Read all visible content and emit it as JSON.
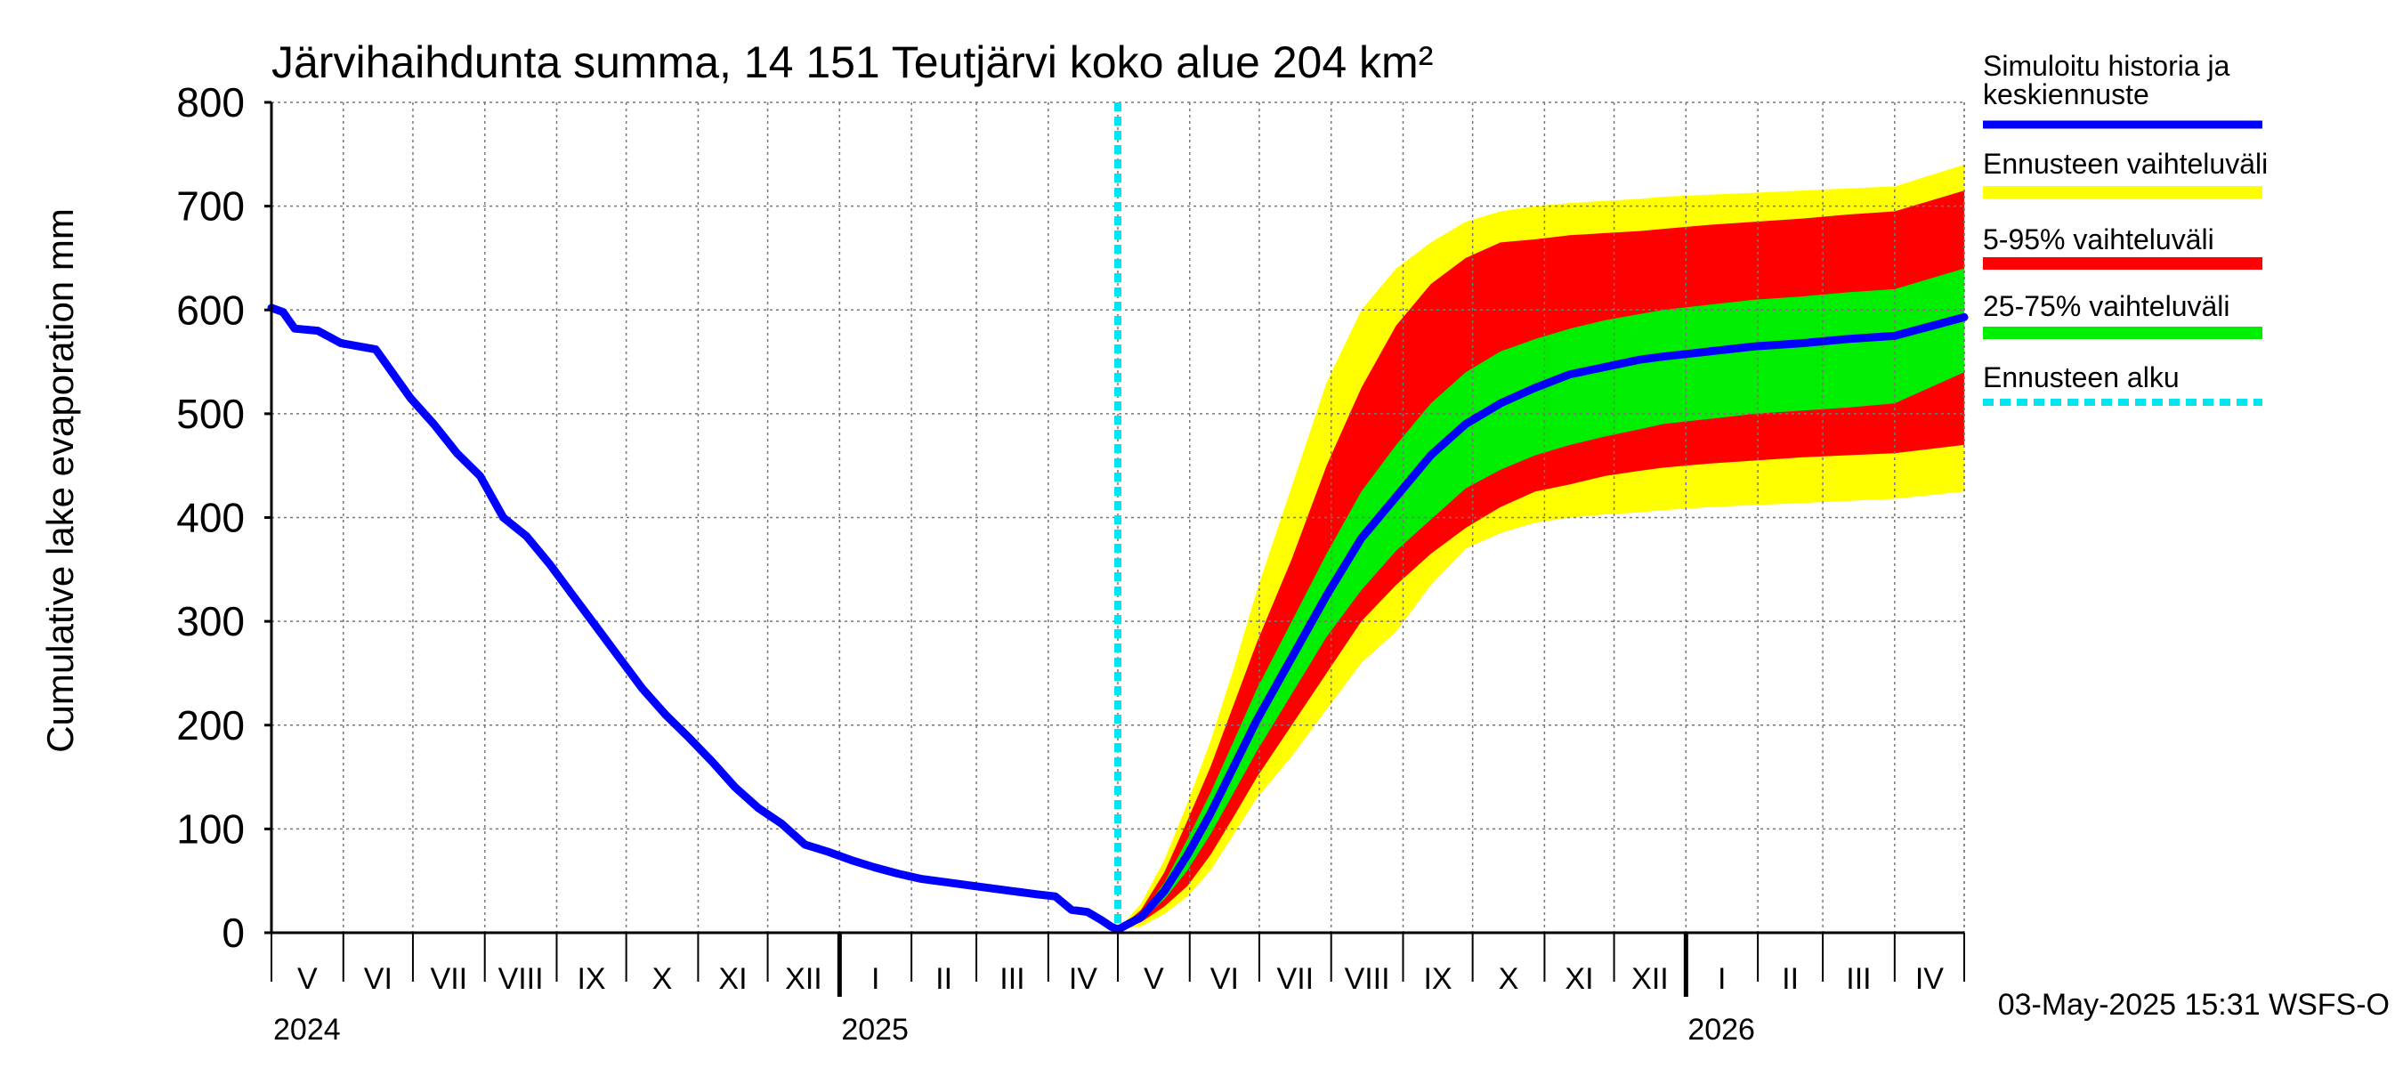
{
  "chart_data": {
    "type": "area",
    "title": "Järvihaihdunta summa, 14 151 Teutjärvi koko alue 204 km²",
    "ylabel": "Cumulative lake evaporation   mm",
    "xlabel": "",
    "ylim": [
      0,
      800
    ],
    "yticks": [
      "0",
      "100",
      "200",
      "300",
      "400",
      "500",
      "600",
      "700",
      "800"
    ],
    "grid": true,
    "legend_position": "right",
    "months": [
      "V",
      "VI",
      "VII",
      "VIII",
      "IX",
      "X",
      "XI",
      "XII",
      "I",
      "II",
      "III",
      "IV",
      "V",
      "VI",
      "VII",
      "VIII",
      "IX",
      "X",
      "XI",
      "XII",
      "I",
      "II",
      "III",
      "IV"
    ],
    "years": [
      "2024",
      "2025",
      "2026"
    ],
    "forecast_start_day": 365,
    "history": {
      "name": "Simuloitu historia ja keskiennuste",
      "days": [
        0,
        5,
        10,
        20,
        30,
        45,
        52,
        60,
        70,
        80,
        90,
        100,
        110,
        120,
        130,
        140,
        150,
        160,
        170,
        180,
        190,
        200,
        210,
        220,
        230,
        240,
        250,
        260,
        270,
        280,
        290,
        300,
        310,
        320,
        330,
        338,
        345,
        352,
        358,
        362,
        365
      ],
      "values": [
        602,
        598,
        582,
        580,
        568,
        562,
        540,
        515,
        490,
        462,
        440,
        400,
        382,
        355,
        325,
        295,
        265,
        235,
        210,
        188,
        165,
        140,
        120,
        105,
        85,
        78,
        70,
        63,
        57,
        52,
        49,
        46,
        43,
        40,
        37,
        35,
        22,
        20,
        12,
        6,
        3
      ]
    },
    "forecast": {
      "days": [
        365,
        375,
        385,
        395,
        405,
        415,
        425,
        440,
        455,
        470,
        485,
        500,
        515,
        530,
        545,
        560,
        575,
        590,
        600,
        620,
        640,
        660,
        680,
        700,
        730
      ],
      "median": [
        3,
        15,
        40,
        75,
        115,
        160,
        205,
        265,
        325,
        380,
        420,
        460,
        490,
        510,
        525,
        538,
        545,
        552,
        555,
        560,
        565,
        568,
        572,
        575,
        593
      ],
      "p25": [
        3,
        12,
        32,
        60,
        95,
        135,
        175,
        230,
        285,
        330,
        368,
        398,
        428,
        446,
        460,
        470,
        478,
        485,
        490,
        495,
        500,
        503,
        506,
        510,
        540
      ],
      "p75": [
        3,
        18,
        48,
        90,
        135,
        185,
        235,
        300,
        365,
        425,
        470,
        510,
        540,
        560,
        572,
        582,
        590,
        596,
        600,
        605,
        610,
        613,
        617,
        620,
        640
      ],
      "p5": [
        3,
        10,
        25,
        45,
        75,
        112,
        150,
        200,
        250,
        300,
        335,
        365,
        390,
        410,
        425,
        432,
        440,
        445,
        448,
        452,
        455,
        458,
        460,
        462,
        470
      ],
      "p95": [
        3,
        22,
        58,
        108,
        160,
        220,
        280,
        360,
        450,
        525,
        585,
        625,
        650,
        665,
        668,
        672,
        674,
        676,
        678,
        682,
        685,
        688,
        692,
        695,
        715
      ],
      "min": [
        3,
        6,
        18,
        35,
        60,
        95,
        130,
        170,
        215,
        260,
        290,
        335,
        370,
        385,
        395,
        400,
        403,
        405,
        407,
        410,
        412,
        414,
        416,
        418,
        425
      ],
      "max": [
        3,
        28,
        70,
        125,
        185,
        255,
        330,
        430,
        530,
        600,
        640,
        665,
        685,
        695,
        700,
        703,
        705,
        707,
        709,
        711,
        713,
        715,
        717,
        719,
        740
      ]
    },
    "legend": [
      {
        "label": "Simuloitu historia ja\nkeskiennuste",
        "color": "#0000ff",
        "style": "line"
      },
      {
        "label": "Ennusteen vaihteluväli",
        "color": "#ffff00",
        "style": "band"
      },
      {
        "label": "5-95% vaihteluväli",
        "color": "#ff0000",
        "style": "band"
      },
      {
        "label": "25-75% vaihteluväli",
        "color": "#00ee00",
        "style": "band"
      },
      {
        "label": "Ennusteen alku",
        "color": "#00e5ee",
        "style": "dashed"
      }
    ],
    "timestamp": "03-May-2025 15:31 WSFS-O"
  }
}
